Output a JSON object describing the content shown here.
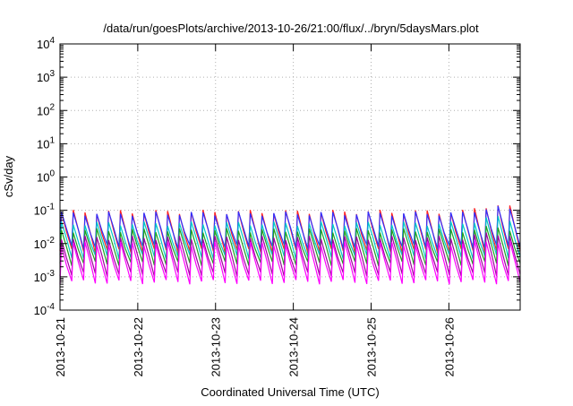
{
  "chart_data": {
    "type": "line",
    "title": "/data/run/goesPlots/archive/2013-10-26/21:00/flux/../bryn/5daysMars.plot",
    "xlabel": "Coordinated Universal Time (UTC)",
    "ylabel": "cSv/day",
    "yscale": "log",
    "ylim": [
      0.0001,
      10000
    ],
    "xlim": [
      "2013-10-21",
      "2013-10-26T22:00"
    ],
    "grid": true,
    "legend": "none",
    "x_ticks": [
      "2013-10-21",
      "2013-10-22",
      "2013-10-23",
      "2013-10-24",
      "2013-10-25",
      "2013-10-26"
    ],
    "y_ticks": [
      {
        "base": "10",
        "exp": "-4"
      },
      {
        "base": "10",
        "exp": "-3"
      },
      {
        "base": "10",
        "exp": "-2"
      },
      {
        "base": "10",
        "exp": "-1"
      },
      {
        "base": "10",
        "exp": "0"
      },
      {
        "base": "10",
        "exp": "1"
      },
      {
        "base": "10",
        "exp": "2"
      },
      {
        "base": "10",
        "exp": "3"
      },
      {
        "base": "10",
        "exp": "4"
      }
    ],
    "pattern": {
      "description_period_days": 0.15,
      "spikes_per_day": 6.6
    },
    "series": [
      {
        "color": "#ff2020",
        "peak": 0.09,
        "trough": 0.006,
        "end_peak": 0.14
      },
      {
        "color": "#3030ff",
        "peak": 0.08,
        "trough": 0.008,
        "end_peak": 0.12
      },
      {
        "color": "#00c8c8",
        "peak": 0.04,
        "trough": 0.004,
        "end_peak": 0.06
      },
      {
        "color": "#20a020",
        "peak": 0.025,
        "trough": 0.0025,
        "end_peak": 0.03
      },
      {
        "color": "#a000a0",
        "peak": 0.015,
        "trough": 0.0012,
        "end_peak": 0.02
      },
      {
        "color": "#ff00ff",
        "peak": 0.01,
        "trough": 0.0007,
        "end_peak": 0.012
      }
    ]
  }
}
